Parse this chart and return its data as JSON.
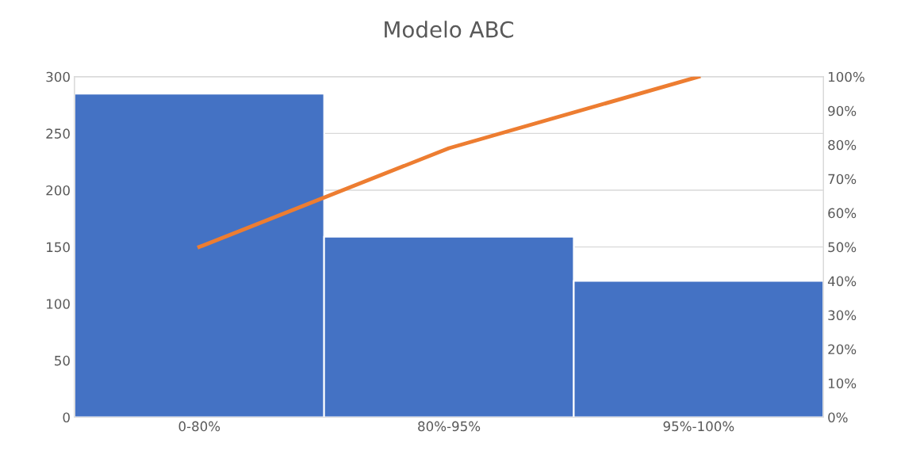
{
  "chart_data": {
    "type": "bar",
    "title": "Modelo ABC",
    "categories": [
      "0-80%",
      "80%-95%",
      "95%-100%"
    ],
    "series": [
      {
        "color": "#4472c4",
        "values": [
          285,
          159,
          120
        ]
      },
      {
        "type": "line",
        "axis": "y2",
        "color": "#ed7d31",
        "values": [
          50,
          79,
          100
        ]
      }
    ],
    "ylim": [
      0,
      300
    ],
    "yticks": [
      0,
      50,
      100,
      150,
      200,
      250,
      300
    ],
    "y2lim": [
      0,
      100
    ],
    "y2ticks": [
      {
        "value": 0,
        "label": "0%"
      },
      {
        "value": 10,
        "label": "10%"
      },
      {
        "value": 20,
        "label": "20%"
      },
      {
        "value": 30,
        "label": "30%"
      },
      {
        "value": 40,
        "label": "40%"
      },
      {
        "value": 50,
        "label": "50%"
      },
      {
        "value": 60,
        "label": "60%"
      },
      {
        "value": 70,
        "label": "70%"
      },
      {
        "value": 80,
        "label": "80%"
      },
      {
        "value": 90,
        "label": "90%"
      },
      {
        "value": 100,
        "label": "100%"
      }
    ],
    "grid": "y",
    "marker": "none",
    "line_style": "solid"
  }
}
